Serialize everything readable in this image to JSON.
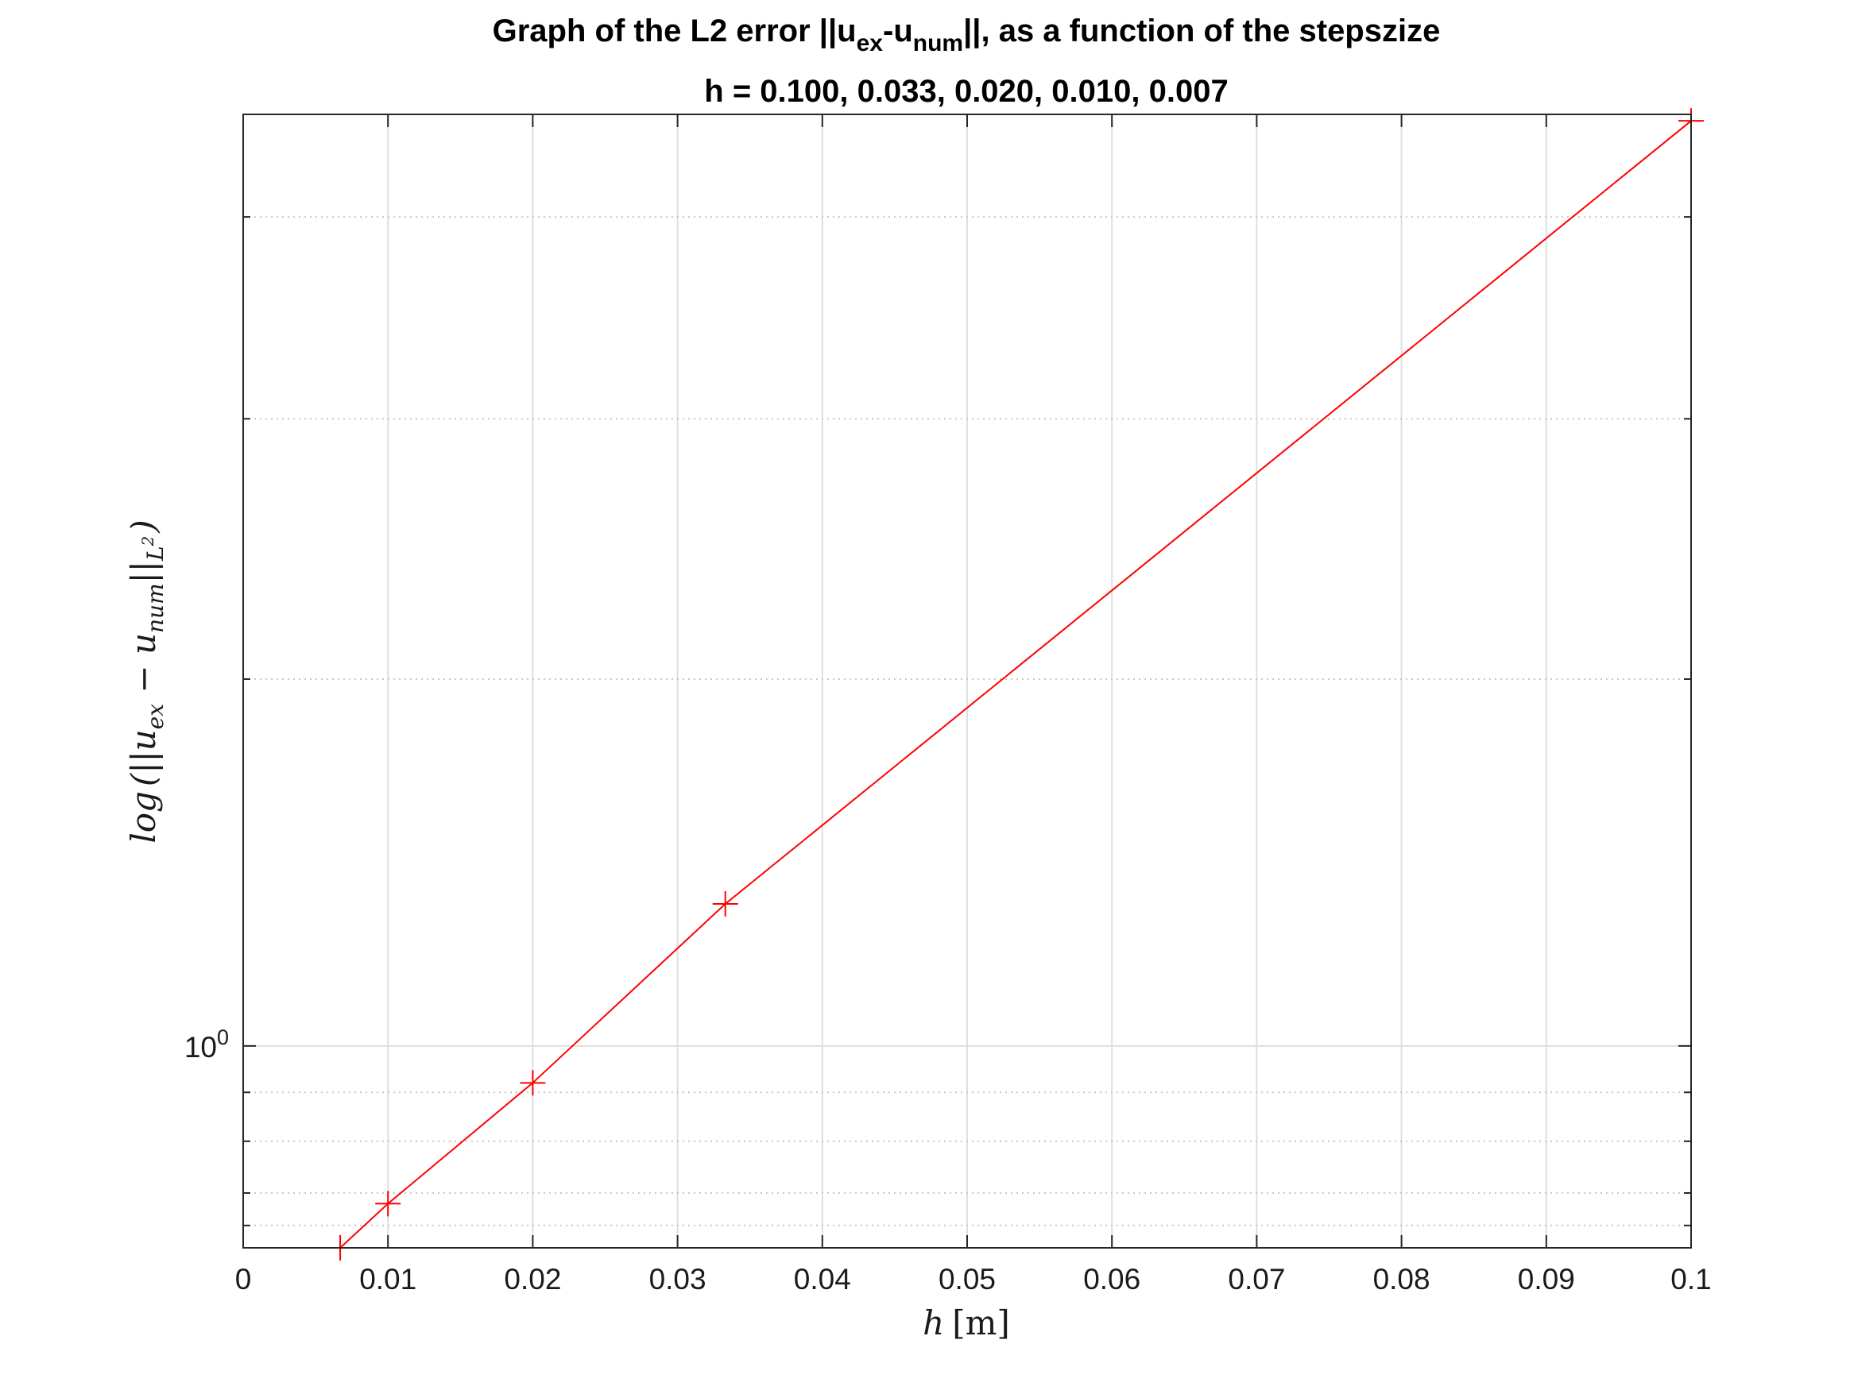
{
  "chart_data": {
    "type": "line",
    "title_parts": {
      "prefix": "Graph of the L2 error ||u",
      "sub1": "ex",
      "mid": "-u",
      "sub2": "num",
      "suffix": "||, as a function of the stepszize"
    },
    "subtitle": "h = 0.100, 0.033, 0.020, 0.010, 0.007",
    "xlabel_parts": {
      "var": "h",
      "unit": "[m]"
    },
    "ylabel_parts": {
      "func": "log",
      "open": "(||u",
      "sub1": "ex",
      "mid": " − u",
      "sub2": "num",
      "close_bars": "||",
      "sub3": "L",
      "sup3": "2",
      "close": ")"
    },
    "xlim": [
      0,
      0.1
    ],
    "ylim": [
      0.8,
      2.8
    ],
    "yscale": "log",
    "grid": true,
    "x_ticks": [
      0,
      0.01,
      0.02,
      0.03,
      0.04,
      0.05,
      0.06,
      0.07,
      0.08,
      0.09,
      0.1
    ],
    "x_tick_labels": [
      "0",
      "0.01",
      "0.02",
      "0.03",
      "0.04",
      "0.05",
      "0.06",
      "0.07",
      "0.08",
      "0.09",
      "0.1"
    ],
    "y_major_tick": {
      "value": 1,
      "base": "10",
      "exponent": "0"
    },
    "y_minor_ticks": [
      0.82,
      0.85,
      0.9,
      0.95,
      1.5,
      2,
      2.5
    ],
    "series": [
      {
        "color": "#ff0000",
        "marker": "+",
        "x": [
          0.0067,
          0.01,
          0.02,
          0.0333,
          0.1
        ],
        "y": [
          0.8,
          0.84,
          0.96,
          1.17,
          2.78
        ]
      }
    ]
  }
}
